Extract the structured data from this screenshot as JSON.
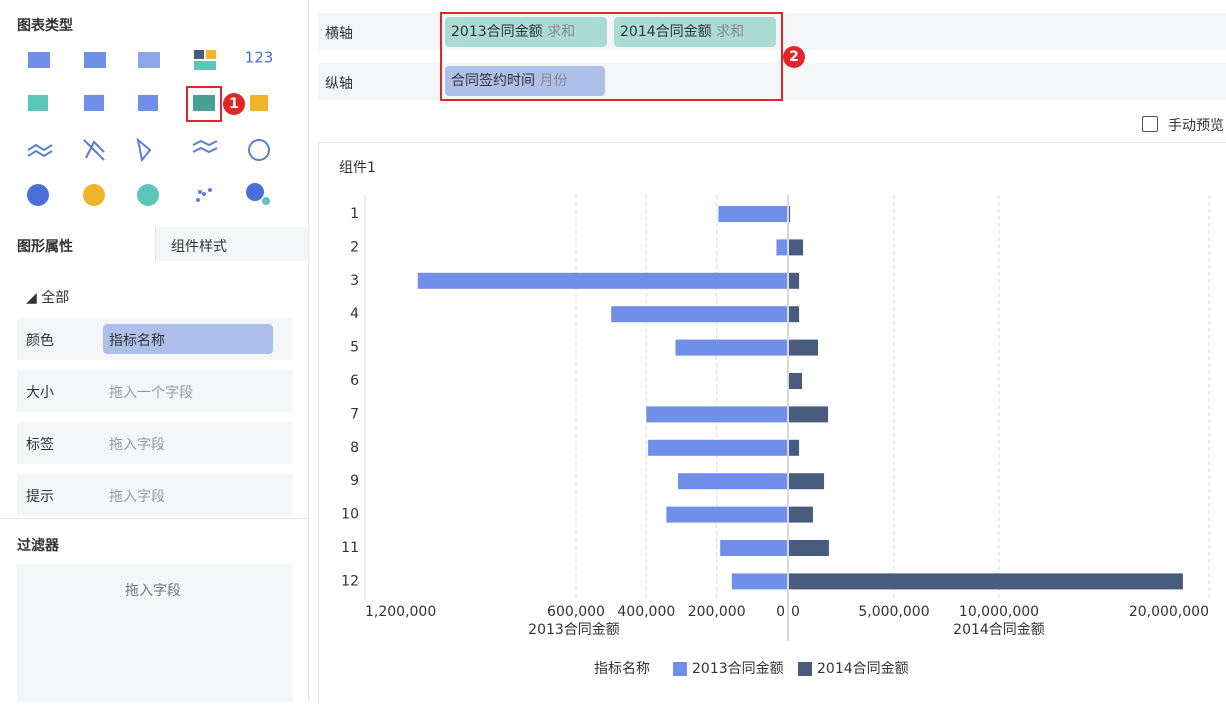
{
  "sidebar": {
    "chart_type_title": "图表类型",
    "icon_label": "123",
    "tabs": [
      "图形属性",
      "组件样式"
    ],
    "section": "全部",
    "fields": [
      {
        "label": "颜色",
        "value": "指标名称"
      },
      {
        "label": "大小",
        "placeholder": "拖入一个字段"
      },
      {
        "label": "标签",
        "placeholder": "拖入字段"
      },
      {
        "label": "提示",
        "placeholder": "拖入字段"
      }
    ],
    "filter": {
      "title": "过滤器",
      "placeholder": "拖入字段"
    }
  },
  "toolbar": {
    "x_axis": {
      "label": "横轴",
      "fields": [
        {
          "name": "2013合同金额",
          "agg": "求和"
        },
        {
          "name": "2014合同金额",
          "agg": "求和"
        }
      ]
    },
    "y_axis": {
      "label": "纵轴",
      "fields": [
        {
          "name": "合同签约时间",
          "agg": "月份"
        }
      ]
    },
    "preview": "手动预览"
  },
  "annotations": [
    "1",
    "2"
  ],
  "chart_data": {
    "type": "butterfly",
    "title": "组件1",
    "categories": [
      "1",
      "2",
      "3",
      "4",
      "5",
      "6",
      "7",
      "8",
      "9",
      "10",
      "11",
      "12"
    ],
    "series": [
      {
        "name": "2013合同金额",
        "color": "#6f8fe8",
        "values": [
          195000,
          30000,
          1050000,
          500000,
          317000,
          0,
          400000,
          395000,
          310000,
          343000,
          190000,
          157000
        ]
      },
      {
        "name": "2014合同金额",
        "color": "#4a5b80",
        "axis": "x2",
        "values": [
          50000,
          670000,
          480000,
          480000,
          1380000,
          620000,
          1860000,
          480000,
          1670000,
          1140000,
          1900000,
          18760000
        ]
      }
    ],
    "xlim": [
      0,
      1200000
    ],
    "xticks": [
      {
        "value": 1200000,
        "label": "1,200,000"
      },
      {
        "value": 600000,
        "label": "600,000"
      },
      {
        "value": 400000,
        "label": "400,000"
      },
      {
        "value": 200000,
        "label": "200,000"
      },
      0
    ],
    "xlabel": "2013合同金额",
    "x2lim": [
      0,
      20000000
    ],
    "x2ticks": [
      0,
      {
        "value": 5000000,
        "label": "5,000,000"
      },
      {
        "value": 10000000,
        "label": "10,000,000"
      },
      {
        "value": 20000000,
        "label": "20,000,000"
      }
    ],
    "x2label": "2014合同金额",
    "legend_title": "指标名称",
    "grid": true
  }
}
